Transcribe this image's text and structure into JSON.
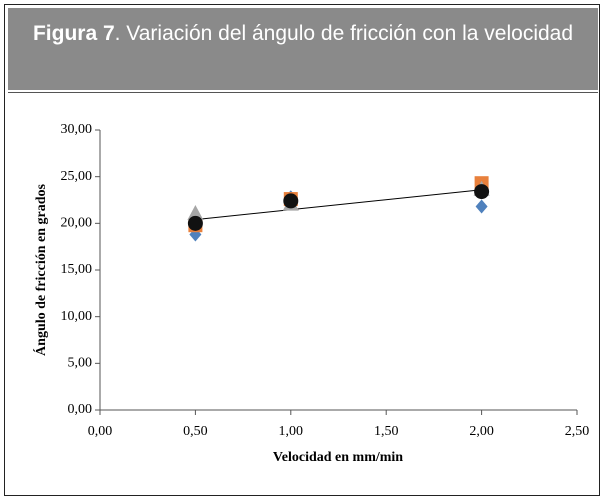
{
  "chart_data": {
    "type": "scatter",
    "title_label": "Figura 7",
    "title": ". Variación del ángulo de fricción con la velocidad",
    "x_label": "Velocidad en mm/min",
    "y_label": "Ángulo de fricción en grados",
    "xlim": [
      0,
      2.5
    ],
    "ylim": [
      0,
      30
    ],
    "xticks": [
      {
        "value": 0,
        "label": "0,00"
      },
      {
        "value": 0.5,
        "label": "0,50"
      },
      {
        "value": 1,
        "label": "1,00"
      },
      {
        "value": 1.5,
        "label": "1,50"
      },
      {
        "value": 2,
        "label": "2,00"
      },
      {
        "value": 2.5,
        "label": "2,50"
      }
    ],
    "yticks": [
      {
        "value": 0,
        "label": "0,00"
      },
      {
        "value": 5,
        "label": "5,00"
      },
      {
        "value": 10,
        "label": "10,00"
      },
      {
        "value": 15,
        "label": "15,00"
      },
      {
        "value": 20,
        "label": "20,00"
      },
      {
        "value": 25,
        "label": "25,00"
      },
      {
        "value": 30,
        "label": "30,00"
      }
    ],
    "series": [
      {
        "color": "#4f81bd",
        "marker": "diamond",
        "x": [
          0.5,
          1,
          2
        ],
        "values": [
          18.8,
          22.8,
          21.8
        ]
      },
      {
        "color": "#e8803c",
        "marker": "square",
        "x": [
          0.5,
          1,
          2
        ],
        "values": [
          19.8,
          22.6,
          24.3
        ]
      },
      {
        "color": "#a6a6a6",
        "marker": "triangle",
        "x": [
          0.5,
          1,
          2
        ],
        "values": [
          21.0,
          22.0,
          23.6
        ]
      },
      {
        "color": "#111111",
        "marker": "circle",
        "x": [
          0.5,
          1,
          2
        ],
        "values": [
          20.0,
          22.4,
          23.4
        ]
      }
    ],
    "trendline": {
      "color": "#000000",
      "x": [
        0.5,
        2
      ],
      "values": [
        20.4,
        23.6
      ]
    }
  }
}
